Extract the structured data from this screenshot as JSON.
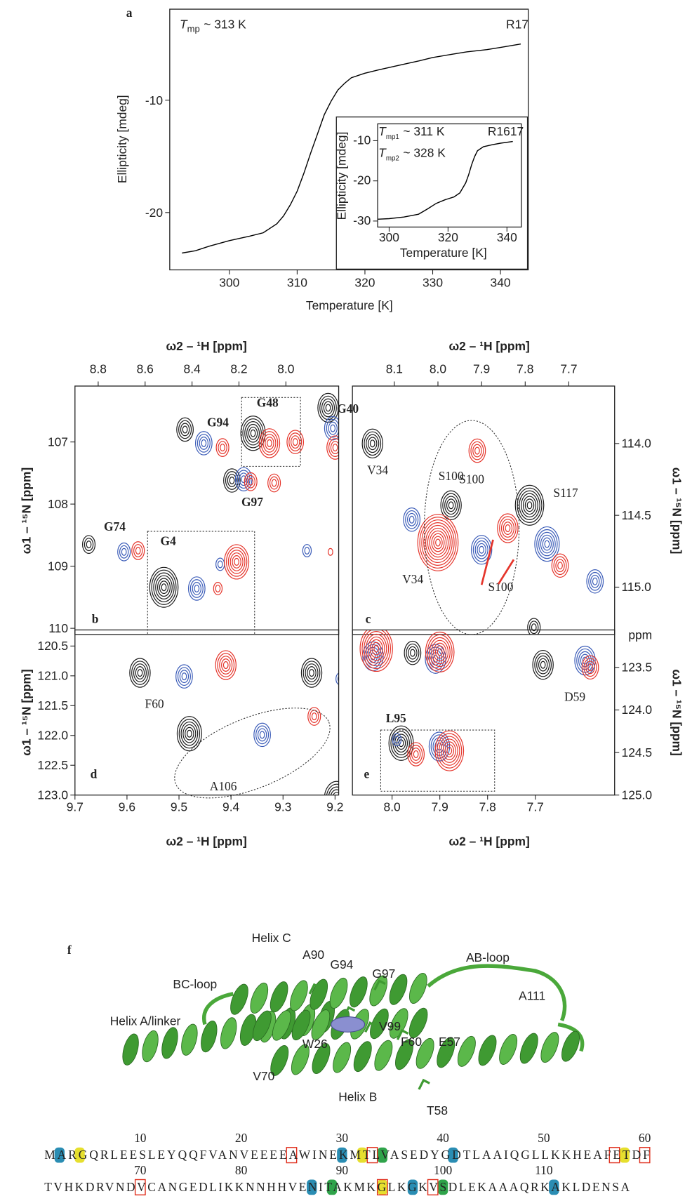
{
  "chart_data": [
    {
      "type": "line",
      "panel_label": "a",
      "x_label": "Temperature [K]",
      "y_label": "Ellipticity [mdeg]",
      "xlim": [
        291.2,
        344.1
      ],
      "ylim": [
        -25.1,
        -1.9
      ],
      "xticks": [
        300,
        310,
        320,
        330,
        340
      ],
      "yticks": [
        -10,
        -20
      ],
      "x_axis": "bottom",
      "y_axis": "left",
      "color": "#000000",
      "x": [
        293,
        295,
        297,
        300,
        303,
        305,
        307,
        308,
        309,
        310,
        311,
        312,
        313,
        314,
        315,
        316,
        317,
        318,
        320,
        322,
        325,
        328,
        330,
        333,
        335,
        338,
        340,
        343
      ],
      "values": [
        -23.6,
        -23.4,
        -23.0,
        -22.5,
        -22.1,
        -21.8,
        -21.0,
        -20.3,
        -19.3,
        -18.1,
        -16.5,
        -14.7,
        -13.0,
        -11.3,
        -10.1,
        -9.1,
        -8.5,
        -8.0,
        -7.6,
        -7.3,
        -6.9,
        -6.5,
        -6.2,
        -5.9,
        -5.7,
        -5.5,
        -5.3,
        -5.0
      ],
      "annotations": [
        {
          "symbol": "T",
          "subscript": "mp",
          "text": "~ 313 K"
        }
      ],
      "name_label": "R17"
    },
    {
      "type": "line",
      "inset": true,
      "x_label": "Temperature [K]",
      "y_label": "Ellipticity [mdeg]",
      "xlim": [
        296.1,
        344.9
      ],
      "ylim": [
        -31.5,
        -5.8
      ],
      "xticks": [
        300,
        320,
        340
      ],
      "yticks": [
        -10,
        -20,
        -30
      ],
      "x_axis": "bottom",
      "y_axis": "left",
      "color": "#000000",
      "x": [
        295,
        300,
        305,
        310,
        313,
        316,
        319,
        322,
        324,
        326,
        327,
        328,
        329,
        330,
        332,
        335,
        338,
        342
      ],
      "values": [
        -29.6,
        -29.4,
        -29.0,
        -28.3,
        -27.0,
        -25.6,
        -24.7,
        -24.0,
        -23.0,
        -20.5,
        -18.5,
        -16.0,
        -14.0,
        -12.5,
        -11.5,
        -11.0,
        -10.6,
        -10.2
      ],
      "annotations": [
        {
          "symbol": "T",
          "subscript": "mp1",
          "text": "~ 311 K"
        },
        {
          "symbol": "T",
          "subscript": "mp2",
          "text": "~ 328 K"
        }
      ],
      "name_label": "R1617"
    },
    {
      "type": "contour",
      "panel_label": "b",
      "x_label": "ω2 – ¹H [ppm]",
      "y_label": "ω1 – ¹⁵N [ppm]",
      "xlim": [
        8.899,
        7.775
      ],
      "ylim": [
        110.1,
        106.1
      ],
      "xticks": [
        8.8,
        8.6,
        8.4,
        8.2,
        {
          "value": 8,
          "label": "8.0"
        }
      ],
      "yticks": [
        107,
        108,
        109,
        110
      ],
      "x_axis": "top",
      "y_axis": "left",
      "series": [
        {
          "color": "#1a1a1a",
          "x": [
            8.43,
            7.82,
            8.14,
            8.23,
            8.84,
            8.52
          ],
          "values": [
            106.8,
            106.45,
            106.86,
            107.62,
            108.65,
            109.34
          ],
          "levels": [
            4,
            5,
            6,
            4,
            3,
            7
          ]
        },
        {
          "color": "#3b5cb8",
          "x": [
            8.35,
            7.8,
            8.18,
            8.69,
            8.38,
            8.28,
            7.91
          ],
          "values": [
            107.02,
            106.78,
            107.6,
            108.77,
            109.36,
            108.97,
            108.75
          ],
          "levels": [
            4,
            4,
            4,
            3,
            4,
            2,
            2
          ]
        },
        {
          "color": "#e5352b",
          "x": [
            8.27,
            8.07,
            7.96,
            7.79,
            8.15,
            8.05,
            8.63,
            8.21,
            8.29,
            7.81
          ],
          "values": [
            107.09,
            107.02,
            107.0,
            107.09,
            107.64,
            107.66,
            108.75,
            108.93,
            109.36,
            108.77
          ],
          "levels": [
            3,
            5,
            4,
            4,
            3,
            3,
            3,
            6,
            2,
            1
          ]
        }
      ],
      "labels": [
        {
          "text": "G94",
          "color": "#000000",
          "bold": true
        },
        {
          "text": "G40",
          "color": "#000000",
          "bold": true
        },
        {
          "text": "G48",
          "color": "#000000",
          "bold": true
        },
        {
          "text": "G97",
          "color": "#000000",
          "bold": true
        },
        {
          "text": "G74",
          "color": "#000000",
          "bold": true
        },
        {
          "text": "G4",
          "color": "#000000",
          "bold": true
        }
      ]
    },
    {
      "type": "contour",
      "panel_label": "c",
      "x_label": "ω2 – ¹H [ppm]",
      "y_label": "ω1 – ¹⁵N [ppm]",
      "xlim": [
        8.196,
        7.595
      ],
      "ylim": [
        115.33,
        113.6
      ],
      "xticks": [
        8.1,
        {
          "value": 8,
          "label": "8.0"
        },
        7.9,
        7.8,
        7.7
      ],
      "yticks": [
        {
          "value": 114,
          "label": "114.0"
        },
        114.5,
        {
          "value": 115,
          "label": "115.0"
        }
      ],
      "x_axis": "top",
      "y_axis": "right",
      "series": [
        {
          "color": "#1a1a1a",
          "x": [
            8.15,
            7.97,
            7.79,
            7.78
          ],
          "values": [
            114.0,
            114.43,
            114.43,
            115.28
          ],
          "levels": [
            5,
            5,
            7,
            3
          ]
        },
        {
          "color": "#3b5cb8",
          "x": [
            8.06,
            7.9,
            7.75,
            7.64
          ],
          "values": [
            114.53,
            114.74,
            114.7,
            114.96
          ],
          "levels": [
            4,
            5,
            6,
            4
          ]
        },
        {
          "color": "#e5352b",
          "x": [
            7.91,
            8.0,
            7.84,
            7.72
          ],
          "values": [
            114.05,
            114.69,
            114.59,
            114.85
          ],
          "levels": [
            4,
            10,
            5,
            4
          ]
        }
      ],
      "labels": [
        {
          "text": "V34",
          "color": "#000000",
          "bold": false
        },
        {
          "text": "S100",
          "color": "#000000",
          "bold": false
        },
        {
          "text": "S117",
          "color": "#000000",
          "bold": false
        },
        {
          "text": "S100",
          "color": "#e5352b",
          "bold": false
        },
        {
          "text": "V34",
          "color": "#e5352b",
          "bold": false
        },
        {
          "text": "S100",
          "color": "#e5352b",
          "bold": false
        }
      ]
    },
    {
      "type": "contour",
      "panel_label": "d",
      "x_label": "ω2 – ¹H [ppm]",
      "y_label": "ω1 – ¹⁵N [ppm]",
      "xlim": [
        9.7,
        9.193
      ],
      "ylim": [
        123.0,
        120.23
      ],
      "xticks": [
        9.7,
        9.6,
        9.5,
        9.4,
        9.3,
        9.2
      ],
      "yticks": [
        120.5,
        {
          "value": 121,
          "label": "121.0"
        },
        121.5,
        {
          "value": 122,
          "label": "122.0"
        },
        122.5,
        {
          "value": 123,
          "label": "123.0"
        }
      ],
      "x_axis": "bottom",
      "y_axis": "left",
      "series": [
        {
          "color": "#1a1a1a",
          "x": [
            9.575,
            9.48,
            9.245,
            9.197
          ],
          "values": [
            120.95,
            121.97,
            120.95,
            123.06
          ],
          "levels": [
            5,
            6,
            5,
            6
          ]
        },
        {
          "color": "#3b5cb8",
          "x": [
            9.49,
            9.34,
            9.19
          ],
          "values": [
            121.01,
            121.99,
            121.05
          ],
          "levels": [
            4,
            4,
            2
          ]
        },
        {
          "color": "#e5352b",
          "x": [
            9.41,
            9.24
          ],
          "values": [
            120.82,
            121.68
          ],
          "levels": [
            5,
            3
          ]
        }
      ],
      "labels": [
        {
          "text": "F60",
          "color": "#000000",
          "bold": false
        },
        {
          "text": "A106",
          "color": "#000000",
          "bold": false
        }
      ]
    },
    {
      "type": "contour",
      "panel_label": "e",
      "x_label": "ω2 – ¹H [ppm]",
      "y_label": "ω1 – ¹⁵N [ppm]",
      "y_unit_label": "ppm",
      "xlim": [
        8.083,
        7.534
      ],
      "ylim": [
        125.0,
        123.06
      ],
      "xticks": [
        {
          "value": 8,
          "label": "8.0"
        },
        7.9,
        7.8,
        7.7
      ],
      "yticks": [
        123.5,
        {
          "value": 124,
          "label": "124.0"
        },
        124.5,
        {
          "value": 125,
          "label": "125.0"
        }
      ],
      "x_axis": "bottom",
      "y_axis": "right",
      "series": [
        {
          "color": "#1a1a1a",
          "x": [
            7.957,
            7.684,
            7.981
          ],
          "values": [
            123.33,
            123.47,
            124.39
          ],
          "levels": [
            4,
            5,
            6
          ]
        },
        {
          "color": "#3b5cb8",
          "x": [
            8.04,
            7.909,
            7.596,
            7.901,
            7.99
          ],
          "values": [
            123.37,
            123.4,
            123.42,
            124.43,
            124.35
          ],
          "levels": [
            5,
            5,
            5,
            5,
            2
          ]
        },
        {
          "color": "#e5352b",
          "x": [
            8.033,
            7.9,
            7.585,
            7.88,
            7.95
          ],
          "values": [
            123.28,
            123.32,
            123.5,
            124.48,
            124.52
          ],
          "levels": [
            8,
            7,
            4,
            7,
            4
          ]
        }
      ],
      "labels": [
        {
          "text": "D59",
          "color": "#000000",
          "bold": false
        },
        {
          "text": "L95",
          "color": "#000000",
          "bold": true
        }
      ]
    }
  ],
  "panel_f": {
    "label": "f",
    "structure_labels": [
      "Helix C",
      "A90",
      "G94",
      "G97",
      "AB-loop",
      "BC-loop",
      "A111",
      "Helix A/linker",
      "V99",
      "W26",
      "F60",
      "E57",
      "V70",
      "Helix B",
      "T58"
    ],
    "sequence": {
      "lines": [
        "MARGQRLEESLEYQQFVANVEEEEAWINEKMTLVASEDYGDTLAAIQGLLKKHEAFETDF",
        "TVHKDRVNDVCANGEDLIKKNNHHVENITAKMKGLKGKVSDLEKAAAQRKAKLDENSA"
      ],
      "ruler": [
        10,
        20,
        30,
        40,
        50,
        60,
        70,
        80,
        90,
        100,
        110
      ],
      "highlights": [
        {
          "residue": 2,
          "color": "#2a8db3"
        },
        {
          "residue": 4,
          "color": "#e6df2e"
        },
        {
          "residue": 30,
          "color": "#2a8db3"
        },
        {
          "residue": 32,
          "color": "#e6df2e"
        },
        {
          "residue": 34,
          "color": "#2fa34a"
        },
        {
          "residue": 41,
          "color": "#2a8db3"
        },
        {
          "residue": 58,
          "color": "#e6df2e"
        },
        {
          "residue": 87,
          "color": "#2a8db3"
        },
        {
          "residue": 89,
          "color": "#2fa34a"
        },
        {
          "residue": 94,
          "color": "#e6df2e"
        },
        {
          "residue": 97,
          "color": "#2a8db3"
        },
        {
          "residue": 100,
          "color": "#2fa34a"
        },
        {
          "residue": 111,
          "color": "#2a8db3"
        }
      ],
      "boxed": [
        25,
        33,
        57,
        60,
        70,
        94,
        99
      ],
      "box_color": "#e0301e"
    }
  }
}
